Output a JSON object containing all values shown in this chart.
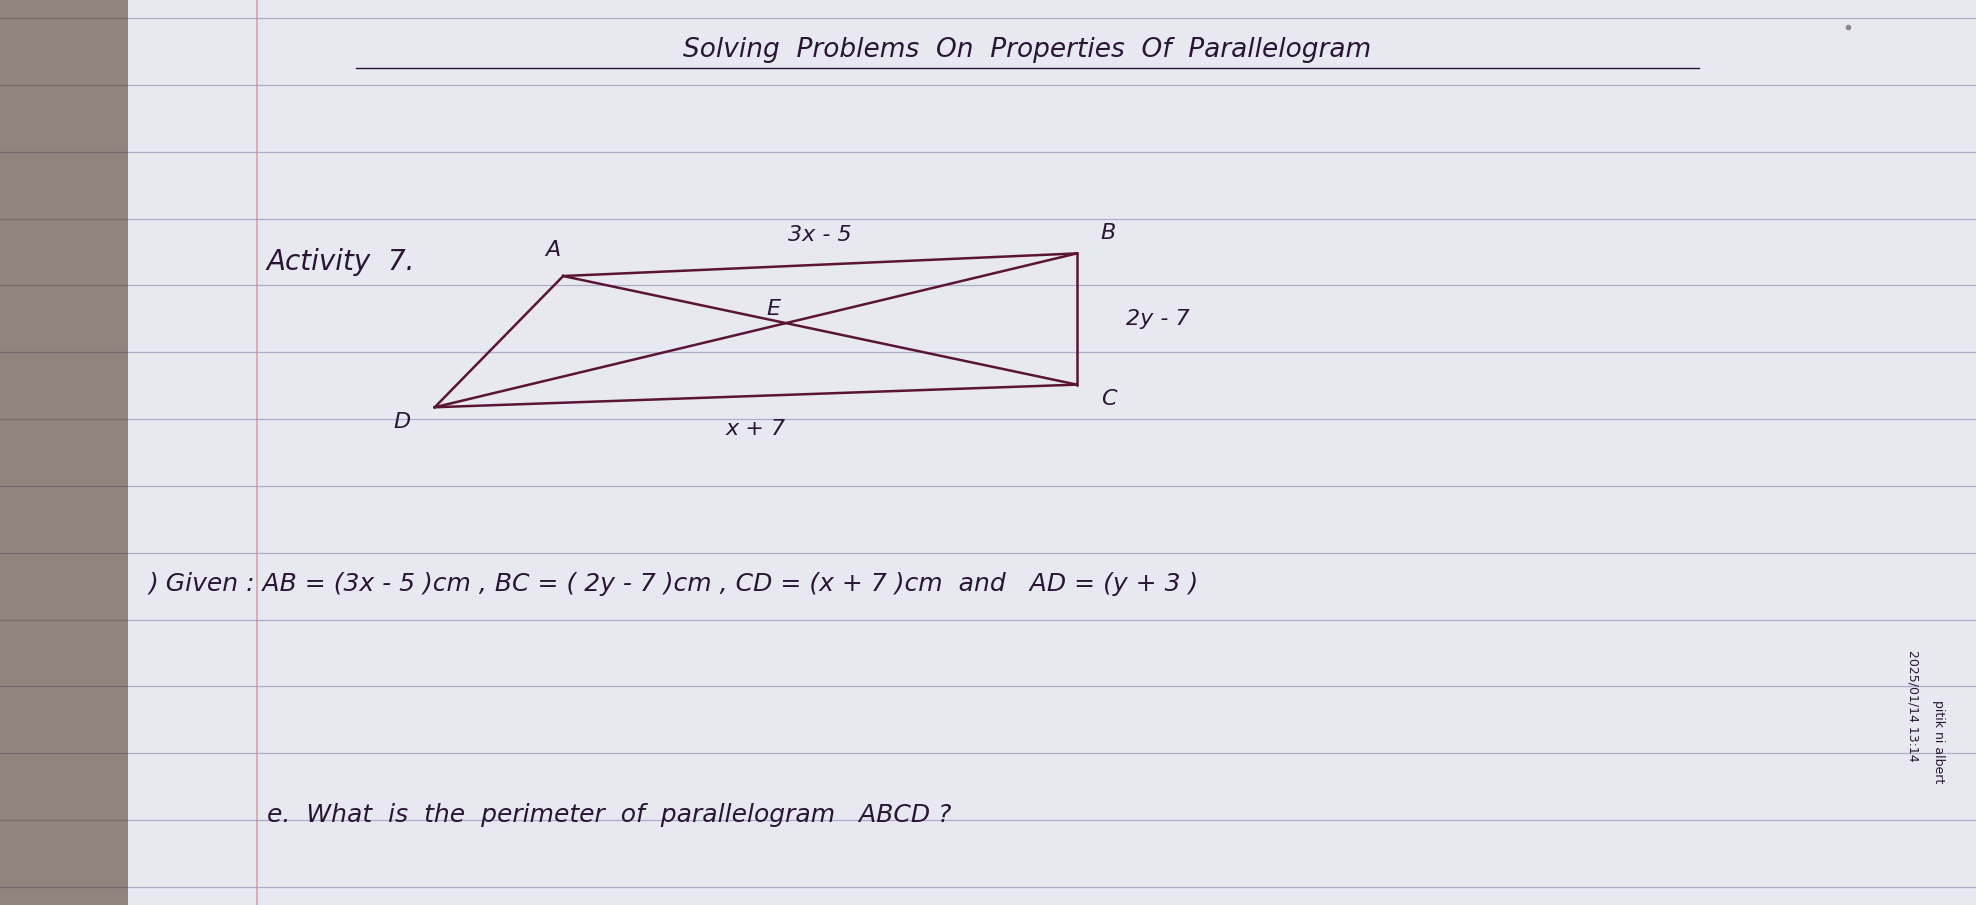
{
  "background_color": "#e8e8f0",
  "line_color": "#9090b8",
  "text_color": "#2a1535",
  "para_color": "#5a1535",
  "title": "Solving  Problems  On  Properties  Of  Parallelogram",
  "activity_label": "Activity  7.",
  "given_text": ") Given : AB = (3x - 5 )cm , BC = ( 2y - 7 )cm , CD = (x + 7 )cm  and   AD = (y + 3 )",
  "question_text": "e.  What  is  the  perimeter  of  parallelogram   ABCD ?",
  "side_text1": "2025/01/14 13:14",
  "side_text2": "pitik ni albert",
  "label_AB": "3x - 5",
  "label_BC": "2y - 7",
  "label_DC": "x + 7",
  "label_E": "E",
  "num_lines": 13,
  "title_fontsize": 19,
  "body_fontsize": 18,
  "diagram_fontsize": 16,
  "small_fontsize": 8
}
